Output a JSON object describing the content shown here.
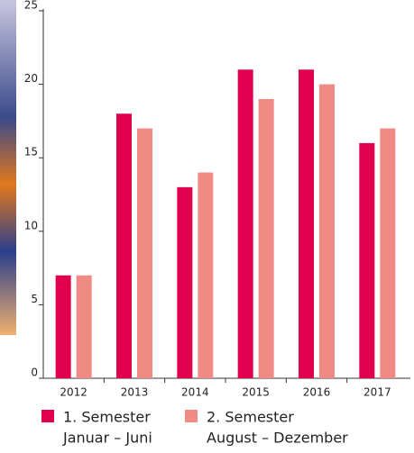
{
  "chart_data": {
    "type": "bar",
    "categories": [
      "2012",
      "2013",
      "2014",
      "2015",
      "2016",
      "2017"
    ],
    "series": [
      {
        "name": "1. Semester",
        "detail": "Januar – Juni",
        "color": "#e0004d",
        "values": [
          7,
          18,
          13,
          21,
          21,
          16
        ]
      },
      {
        "name": "2. Semester",
        "detail": "August – Dezember",
        "color": "#f08a84",
        "values": [
          7,
          17,
          14,
          19,
          20,
          17
        ]
      }
    ],
    "ylim": [
      0,
      25
    ],
    "yticks": [
      0,
      5,
      10,
      15,
      20,
      25
    ]
  }
}
